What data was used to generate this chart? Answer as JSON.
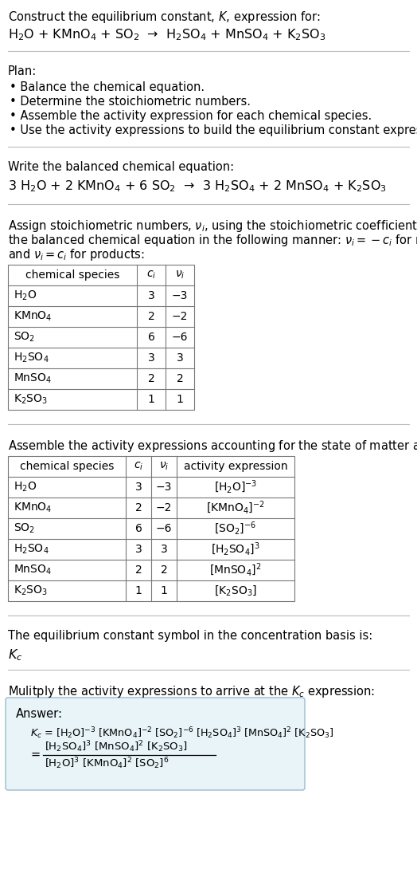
{
  "title_line1": "Construct the equilibrium constant, $K$, expression for:",
  "reaction_unbalanced": "H$_2$O + KMnO$_4$ + SO$_2$  →  H$_2$SO$_4$ + MnSO$_4$ + K$_2$SO$_3$",
  "plan_header": "Plan:",
  "plan_items": [
    "• Balance the chemical equation.",
    "• Determine the stoichiometric numbers.",
    "• Assemble the activity expression for each chemical species.",
    "• Use the activity expressions to build the equilibrium constant expression."
  ],
  "balanced_header": "Write the balanced chemical equation:",
  "reaction_balanced": "3 H$_2$O + 2 KMnO$_4$ + 6 SO$_2$  →  3 H$_2$SO$_4$ + 2 MnSO$_4$ + K$_2$SO$_3$",
  "stoich_intro_lines": [
    "Assign stoichiometric numbers, $\\nu_i$, using the stoichiometric coefficients, $c_i$, from",
    "the balanced chemical equation in the following manner: $\\nu_i = -c_i$ for reactants",
    "and $\\nu_i = c_i$ for products:"
  ],
  "table1_headers": [
    "chemical species",
    "$c_i$",
    "$\\nu_i$"
  ],
  "table1_rows": [
    [
      "H$_2$O",
      "3",
      "−3"
    ],
    [
      "KMnO$_4$",
      "2",
      "−2"
    ],
    [
      "SO$_2$",
      "6",
      "−6"
    ],
    [
      "H$_2$SO$_4$",
      "3",
      "3"
    ],
    [
      "MnSO$_4$",
      "2",
      "2"
    ],
    [
      "K$_2$SO$_3$",
      "1",
      "1"
    ]
  ],
  "activity_intro": "Assemble the activity expressions accounting for the state of matter and $\\nu_i$:",
  "table2_headers": [
    "chemical species",
    "$c_i$",
    "$\\nu_i$",
    "activity expression"
  ],
  "table2_rows": [
    [
      "H$_2$O",
      "3",
      "−3",
      "[H$_2$O]$^{-3}$"
    ],
    [
      "KMnO$_4$",
      "2",
      "−2",
      "[KMnO$_4$]$^{-2}$"
    ],
    [
      "SO$_2$",
      "6",
      "−6",
      "[SO$_2$]$^{-6}$"
    ],
    [
      "H$_2$SO$_4$",
      "3",
      "3",
      "[H$_2$SO$_4$]$^3$"
    ],
    [
      "MnSO$_4$",
      "2",
      "2",
      "[MnSO$_4$]$^2$"
    ],
    [
      "K$_2$SO$_3$",
      "1",
      "1",
      "[K$_2$SO$_3$]"
    ]
  ],
  "kc_symbol_intro": "The equilibrium constant symbol in the concentration basis is:",
  "kc_symbol": "$K_c$",
  "multiply_intro": "Mulitply the activity expressions to arrive at the $K_c$ expression:",
  "answer_label": "Answer:",
  "answer_line1": "$K_c$ = [H$_2$O]$^{-3}$ [KMnO$_4$]$^{-2}$ [SO$_2$]$^{-6}$ [H$_2$SO$_4$]$^3$ [MnSO$_4$]$^2$ [K$_2$SO$_3$]",
  "bg_color": "#ffffff",
  "answer_box_color": "#e8f4f8",
  "answer_box_border": "#9bbccc",
  "font_size": 10.5,
  "font_size_table": 10.0,
  "font_size_eq": 11.5
}
